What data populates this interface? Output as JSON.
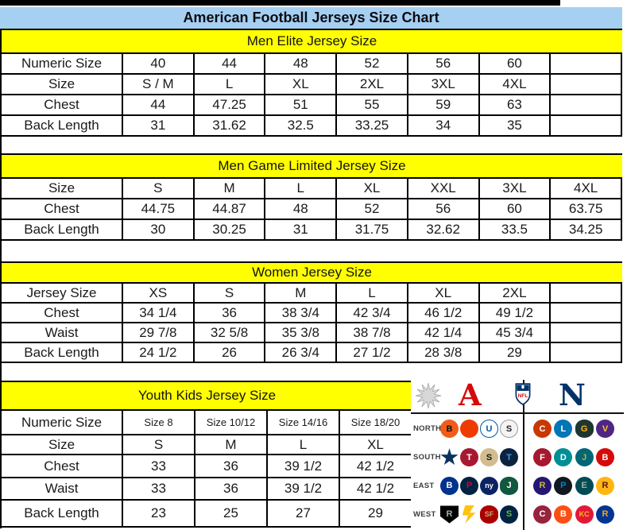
{
  "header": {
    "title": "American Football Jerseys Size Chart"
  },
  "colors": {
    "title_band": "#a6d0f2",
    "section_band": "#ffff00",
    "grid_line": "#000000",
    "afc_red": "#d50a0a",
    "nfc_blue": "#013369"
  },
  "chart_data": [
    {
      "type": "table",
      "title": "Men Elite Jersey Size",
      "rows": [
        [
          "Numeric Size",
          "40",
          "44",
          "48",
          "52",
          "56",
          "60",
          ""
        ],
        [
          "Size",
          "S / M",
          "L",
          "XL",
          "2XL",
          "3XL",
          "4XL",
          ""
        ],
        [
          "Chest",
          "44",
          "47.25",
          "51",
          "55",
          "59",
          "63",
          ""
        ],
        [
          "Back Length",
          "31",
          "31.62",
          "32.5",
          "33.25",
          "34",
          "35",
          ""
        ]
      ]
    },
    {
      "type": "table",
      "title": "Men Game Limited Jersey Size",
      "rows": [
        [
          "Size",
          "S",
          "M",
          "L",
          "XL",
          "XXL",
          "3XL",
          "4XL"
        ],
        [
          "Chest",
          "44.75",
          "44.87",
          "48",
          "52",
          "56",
          "60",
          "63.75"
        ],
        [
          "Back Length",
          "30",
          "30.25",
          "31",
          "31.75",
          "32.62",
          "33.5",
          "34.25"
        ]
      ]
    },
    {
      "type": "table",
      "title": "Women Jersey Size",
      "rows": [
        [
          "Jersey Size",
          "XS",
          "S",
          "M",
          "L",
          "XL",
          "2XL",
          ""
        ],
        [
          "Chest",
          "34 1/4",
          "36",
          "38 3/4",
          "42 3/4",
          "46 1/2",
          "49 1/2",
          ""
        ],
        [
          "Waist",
          "29 7/8",
          "32 5/8",
          "35 3/8",
          "38 7/8",
          "42 1/4",
          "45 3/4",
          ""
        ],
        [
          "Back Length",
          "24 1/2",
          "26",
          "26 3/4",
          "27 1/2",
          "28 3/8",
          "29",
          ""
        ]
      ]
    },
    {
      "type": "table",
      "title": "Youth Kids Jersey Size",
      "rows": [
        [
          "Numeric Size",
          "Size 8",
          "Size 10/12",
          "Size 14/16",
          "Size 18/20"
        ],
        [
          "Size",
          "S",
          "M",
          "L",
          "XL"
        ],
        [
          "Chest",
          "33",
          "36",
          "39 1/2",
          "42 1/2"
        ],
        [
          "Waist",
          "33",
          "36",
          "39 1/2",
          "42 1/2"
        ],
        [
          "Back Length",
          "23",
          "25",
          "27",
          "29"
        ]
      ]
    }
  ],
  "logos": {
    "afc_label": "A",
    "nfc_label": "N",
    "nfl_label": "NFL",
    "divisions": [
      {
        "label": "NORTH",
        "afc": [
          {
            "name": "bengals",
            "label": "B",
            "bg": "#f25c19",
            "fg": "#111111",
            "shape": "circle"
          },
          {
            "name": "browns",
            "label": "",
            "bg": "#ee3b00",
            "fg": "#ffffff",
            "shape": "circle"
          },
          {
            "name": "colts",
            "label": "U",
            "bg": "#ffffff",
            "fg": "#0057a8",
            "border": "#0057a8",
            "shape": "circle"
          },
          {
            "name": "steelers",
            "label": "S",
            "bg": "#f4f4f4",
            "fg": "#222222",
            "border": "#9a9a9a",
            "shape": "circle"
          }
        ],
        "nfc": [
          {
            "name": "bears",
            "label": "C",
            "bg": "#c83803",
            "fg": "#ffffff",
            "shape": "circle"
          },
          {
            "name": "lions",
            "label": "L",
            "bg": "#0076b6",
            "fg": "#ffffff",
            "shape": "circle"
          },
          {
            "name": "packers",
            "label": "G",
            "bg": "#203731",
            "fg": "#ffb612",
            "shape": "oval"
          },
          {
            "name": "vikings",
            "label": "V",
            "bg": "#4f2683",
            "fg": "#ffc62f",
            "shape": "circle"
          }
        ]
      },
      {
        "label": "SOUTH",
        "afc": [
          {
            "name": "cowboys",
            "label": "",
            "bg": "#0a3161",
            "fg": "#ffffff",
            "shape": "star"
          },
          {
            "name": "texans",
            "label": "T",
            "bg": "#a71930",
            "fg": "#ffffff",
            "shape": "circle"
          },
          {
            "name": "saints",
            "label": "S",
            "bg": "#d3bc8d",
            "fg": "#101820",
            "shape": "circle"
          },
          {
            "name": "titans",
            "label": "T",
            "bg": "#0c2340",
            "fg": "#4b92db",
            "shape": "circle"
          }
        ],
        "nfc": [
          {
            "name": "falcons",
            "label": "F",
            "bg": "#a6192e",
            "fg": "#ffffff",
            "shape": "circle"
          },
          {
            "name": "dolphins",
            "label": "D",
            "bg": "#008e97",
            "fg": "#ffffff",
            "shape": "circle"
          },
          {
            "name": "jaguars",
            "label": "J",
            "bg": "#006778",
            "fg": "#d7a22a",
            "shape": "circle"
          },
          {
            "name": "buccaneers",
            "label": "B",
            "bg": "#d50a0a",
            "fg": "#ffffff",
            "shape": "circle"
          }
        ]
      },
      {
        "label": "EAST",
        "afc": [
          {
            "name": "bills",
            "label": "B",
            "bg": "#00338d",
            "fg": "#ffffff",
            "shape": "circle"
          },
          {
            "name": "patriots",
            "label": "P",
            "bg": "#002244",
            "fg": "#c60c30",
            "shape": "circle"
          },
          {
            "name": "giants",
            "label": "ny",
            "bg": "#0b2265",
            "fg": "#ffffff",
            "shape": "circle"
          },
          {
            "name": "jets",
            "label": "J",
            "bg": "#125740",
            "fg": "#ffffff",
            "shape": "oval"
          }
        ],
        "nfc": [
          {
            "name": "ravens",
            "label": "R",
            "bg": "#241773",
            "fg": "#d0b240",
            "shape": "circle"
          },
          {
            "name": "panthers",
            "label": "P",
            "bg": "#101820",
            "fg": "#0085ca",
            "shape": "circle"
          },
          {
            "name": "eagles",
            "label": "E",
            "bg": "#004c54",
            "fg": "#a5acaf",
            "shape": "circle"
          },
          {
            "name": "redskins",
            "label": "R",
            "bg": "#ffb612",
            "fg": "#5a1414",
            "shape": "circle"
          }
        ]
      },
      {
        "label": "WEST",
        "afc": [
          {
            "name": "raiders",
            "label": "R",
            "bg": "#000000",
            "fg": "#a5acaf",
            "shape": "shield"
          },
          {
            "name": "chargers",
            "label": "",
            "bg": "#ffc20e",
            "fg": "#0080c6",
            "shape": "bolt"
          },
          {
            "name": "49ers",
            "label": "SF",
            "bg": "#aa0000",
            "fg": "#c8aa76",
            "shape": "oval"
          },
          {
            "name": "seahawks",
            "label": "S",
            "bg": "#002244",
            "fg": "#69be28",
            "shape": "circle"
          }
        ],
        "nfc": [
          {
            "name": "cardinals",
            "label": "C",
            "bg": "#97233f",
            "fg": "#ffffff",
            "shape": "circle"
          },
          {
            "name": "broncos",
            "label": "B",
            "bg": "#fb4f14",
            "fg": "#ffffff",
            "shape": "circle"
          },
          {
            "name": "chiefs",
            "label": "KC",
            "bg": "#e31837",
            "fg": "#ffb81c",
            "shape": "circle"
          },
          {
            "name": "rams",
            "label": "R",
            "bg": "#003594",
            "fg": "#ffa300",
            "shape": "circle"
          }
        ]
      }
    ]
  }
}
